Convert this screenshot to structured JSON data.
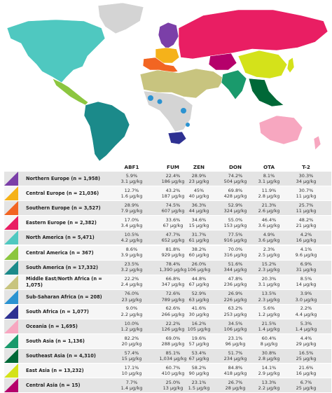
{
  "chart_data": {
    "type": "table",
    "columns": [
      "ABF1",
      "FUM",
      "ZEN",
      "DON",
      "OTA",
      "T-2"
    ],
    "rows": [
      {
        "region": "Northern Europe (n = 1,958)",
        "color": "#7b3fa8",
        "values": [
          [
            "5.9%",
            "3.1 μg/kg"
          ],
          [
            "22.4%",
            "186 μg/kg"
          ],
          [
            "28.9%",
            "23 μg/kg"
          ],
          [
            "74.2%",
            "504 μg/kg"
          ],
          [
            "8.1%",
            "3.1 μg/kg"
          ],
          [
            "30.3%",
            "34 μg/kg"
          ]
        ]
      },
      {
        "region": "Central Europe (n = 21,036)",
        "color": "#f5b21a",
        "values": [
          [
            "12.7%",
            "1.6 μg/kg"
          ],
          [
            "43.2%",
            "187 μg/kg"
          ],
          [
            "45%",
            "40 μg/kg"
          ],
          [
            "69.8%",
            "428 μg/kg"
          ],
          [
            "11.9%",
            "2.8 μg/kg"
          ],
          [
            "30.7%",
            "11 μg/kg"
          ]
        ]
      },
      {
        "region": "Southern Europe (n = 3,527)",
        "color": "#f26522",
        "values": [
          [
            "28.9%",
            "7.9 μg/kg"
          ],
          [
            "74.5%",
            "607 μg/kg"
          ],
          [
            "36.3%",
            "44 μg/kg"
          ],
          [
            "52.9%",
            "324 μg/kg"
          ],
          [
            "21.3%",
            "2.6 μg/kg"
          ],
          [
            "25.7%",
            "11 μg/kg"
          ]
        ]
      },
      {
        "region": "Eastern Europe (n = 2,382)",
        "color": "#e91e63",
        "values": [
          [
            "17.0%",
            "3.4 μg/kg"
          ],
          [
            "33.6%",
            "67 μg/kg"
          ],
          [
            "34.6%",
            "15 μg/kg"
          ],
          [
            "55.0%",
            "153 μg/kg"
          ],
          [
            "46.4%",
            "3.6 μg/kg"
          ],
          [
            "48.2%",
            "21 μg/kg"
          ]
        ]
      },
      {
        "region": "North America (n = 5,471)",
        "color": "#4fc8c0",
        "values": [
          [
            "10.5%",
            "4.2 μg/kg"
          ],
          [
            "47.7%",
            "652 μg/kg"
          ],
          [
            "31.7%",
            "61 μg/kg"
          ],
          [
            "77.5%",
            "916 μg/kg"
          ],
          [
            "4.9%",
            "3.6 μg/kg"
          ],
          [
            "4.2%",
            "16 μg/kg"
          ]
        ]
      },
      {
        "region": "Central America (n = 367)",
        "color": "#8cc63f",
        "values": [
          [
            "8.6%",
            "3.9 μg/kg"
          ],
          [
            "81.8%",
            "929 μg/kg"
          ],
          [
            "38.2%",
            "60 μg/kg"
          ],
          [
            "70.0%",
            "316 μg/kg"
          ],
          [
            "2.3%",
            "2.5 μg/kg"
          ],
          [
            "4.1%",
            "9.6 μg/kg"
          ]
        ]
      },
      {
        "region": "South America (n = 17,332)",
        "color": "#1b8a8a",
        "values": [
          [
            "23.5%",
            "3.2 μg/kg"
          ],
          [
            "78.4%",
            "1,390 μg/kg"
          ],
          [
            "26.0%",
            "106 μg/kg"
          ],
          [
            "51.6%",
            "344 μg/kg"
          ],
          [
            "15.2%",
            "2.3 μg/kg"
          ],
          [
            "6.9%",
            "31 μg/kg"
          ]
        ]
      },
      {
        "region": "Middle East/North Africa (n = 1,075)",
        "color": "#c8c47f",
        "values": [
          [
            "22.2%",
            "2.4 μg/kg"
          ],
          [
            "66.8%",
            "347 μg/kg"
          ],
          [
            "44.8%",
            "67 μg/kg"
          ],
          [
            "47.8%",
            "236 μg/kg"
          ],
          [
            "20.3%",
            "3.1 μg/kg"
          ],
          [
            "8.5%",
            "14 μg/kg"
          ]
        ]
      },
      {
        "region": "Sub-Saharan Africa (n = 208)",
        "color": "#2b93d1",
        "values": [
          [
            "76.0%",
            "23 μg/kg"
          ],
          [
            "72.6%",
            "789 μg/kg"
          ],
          [
            "52.9%",
            "63 μg/kg"
          ],
          [
            "26.9%",
            "226 μg/kg"
          ],
          [
            "13.5%",
            "2.3 μg/kg"
          ],
          [
            "3.9%",
            "3.0 μg/kg"
          ]
        ]
      },
      {
        "region": "South Africa (n = 1,077)",
        "color": "#2e3192",
        "values": [
          [
            "9.0%",
            "2.2 μg/kg"
          ],
          [
            "62.6%",
            "266 μg/kg"
          ],
          [
            "41.6%",
            "30 μg/kg"
          ],
          [
            "63.2%",
            "253 μg/kg"
          ],
          [
            "5.6%",
            "1.2 μg/kg"
          ],
          [
            "2.2%",
            "4.4 μg/kg"
          ]
        ]
      },
      {
        "region": "Oceania (n = 1,695)",
        "color": "#f7a7c0",
        "values": [
          [
            "10.0%",
            "1.2 μg/kg"
          ],
          [
            "22.2%",
            "126 μg/kg"
          ],
          [
            "16.2%",
            "105 μg/kg"
          ],
          [
            "34.5%",
            "106 μg/kg"
          ],
          [
            "21.5%",
            "1.4 μg/kg"
          ],
          [
            "5.3%",
            "1.4 μg/kg"
          ]
        ]
      },
      {
        "region": "South Asia (n = 1,136)",
        "color": "#1a9a6c",
        "values": [
          [
            "82.2%",
            "20 μg/kg"
          ],
          [
            "69.0%",
            "288 μg/kg"
          ],
          [
            "19.6%",
            "57 μg/kg"
          ],
          [
            "23.1%",
            "96 μg/kg"
          ],
          [
            "60.4%",
            "8 μg/kg"
          ],
          [
            "4.4%",
            "29 μg/kg"
          ]
        ]
      },
      {
        "region": "Southeast Asia (n = 4,310)",
        "color": "#006837",
        "values": [
          [
            "57.4%",
            "15 μg/kg"
          ],
          [
            "85.1%",
            "1,034 μg/kg"
          ],
          [
            "53.4%",
            "67 μg/kg"
          ],
          [
            "51.7%",
            "234 μg/kg"
          ],
          [
            "30.8%",
            "2.8 μg/kg"
          ],
          [
            "16.5%",
            "25 μg/kg"
          ]
        ]
      },
      {
        "region": "East Asia (n = 13,232)",
        "color": "#d4e21a",
        "values": [
          [
            "17.1%",
            "10 μg/kg"
          ],
          [
            "60.7%",
            "410 μg/kg"
          ],
          [
            "58.2%",
            "90 μg/kg"
          ],
          [
            "84.8%",
            "418 μg/kg"
          ],
          [
            "14.1%",
            "2.9 μg/kg"
          ],
          [
            "21.6%",
            "16 μg/kg"
          ]
        ]
      },
      {
        "region": "Central Asia (n = 15)",
        "color": "#b5006b",
        "values": [
          [
            "7.7%",
            "1.4 μg/kg"
          ],
          [
            "25.0%",
            "13 μg/kg"
          ],
          [
            "23.1%",
            "1.5 μg/kg"
          ],
          [
            "26.7%",
            "28 μg/kg"
          ],
          [
            "13.3%",
            "2.2 μg/kg"
          ],
          [
            "6.7%",
            "25 μg/kg"
          ]
        ]
      }
    ]
  },
  "map": {
    "colors": {
      "no_data": "#d4d4d4",
      "outline": "#ffffff"
    }
  }
}
